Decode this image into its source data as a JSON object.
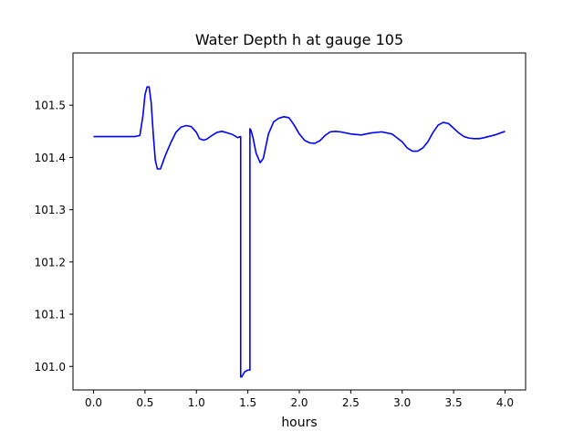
{
  "chart_data": {
    "type": "line",
    "title": "Water Depth h at gauge 105",
    "xlabel": "hours",
    "ylabel": "",
    "xlim": [
      -0.2,
      4.2
    ],
    "ylim": [
      100.955,
      101.6
    ],
    "xticks": [
      0.0,
      0.5,
      1.0,
      1.5,
      2.0,
      2.5,
      3.0,
      3.5,
      4.0
    ],
    "xtick_labels": [
      "0.0",
      "0.5",
      "1.0",
      "1.5",
      "2.0",
      "2.5",
      "3.0",
      "3.5",
      "4.0"
    ],
    "yticks": [
      101.0,
      101.1,
      101.2,
      101.3,
      101.4,
      101.5
    ],
    "ytick_labels": [
      "101.0",
      "101.1",
      "101.2",
      "101.3",
      "101.4",
      "101.5"
    ],
    "grid": false,
    "legend": "none",
    "series": [
      {
        "color": "#0000ff",
        "x": [
          0.0,
          0.1,
          0.2,
          0.3,
          0.4,
          0.45,
          0.48,
          0.5,
          0.52,
          0.54,
          0.56,
          0.58,
          0.6,
          0.62,
          0.65,
          0.7,
          0.75,
          0.8,
          0.85,
          0.9,
          0.95,
          1.0,
          1.03,
          1.07,
          1.1,
          1.15,
          1.2,
          1.25,
          1.3,
          1.35,
          1.4,
          1.43,
          1.43,
          1.44,
          1.47,
          1.5,
          1.52,
          1.52,
          1.53,
          1.55,
          1.58,
          1.62,
          1.65,
          1.7,
          1.75,
          1.8,
          1.85,
          1.9,
          1.95,
          2.0,
          2.05,
          2.1,
          2.15,
          2.2,
          2.25,
          2.3,
          2.35,
          2.4,
          2.5,
          2.6,
          2.7,
          2.8,
          2.9,
          3.0,
          3.05,
          3.1,
          3.15,
          3.2,
          3.25,
          3.3,
          3.35,
          3.4,
          3.45,
          3.5,
          3.55,
          3.6,
          3.65,
          3.7,
          3.75,
          3.8,
          3.9,
          4.0
        ],
        "y": [
          101.44,
          101.44,
          101.44,
          101.44,
          101.44,
          101.442,
          101.48,
          101.52,
          101.535,
          101.535,
          101.505,
          101.445,
          101.395,
          101.378,
          101.378,
          101.405,
          101.428,
          101.448,
          101.458,
          101.461,
          101.459,
          101.448,
          101.436,
          101.433,
          101.435,
          101.442,
          101.448,
          101.45,
          101.447,
          101.444,
          101.438,
          101.44,
          100.98,
          100.98,
          100.99,
          100.993,
          100.993,
          101.455,
          101.452,
          101.438,
          101.408,
          101.39,
          101.398,
          101.445,
          101.468,
          101.475,
          101.478,
          101.476,
          101.462,
          101.445,
          101.433,
          101.428,
          101.427,
          101.432,
          101.442,
          101.449,
          101.45,
          101.449,
          101.445,
          101.443,
          101.447,
          101.449,
          101.445,
          101.43,
          101.418,
          101.412,
          101.412,
          101.418,
          101.43,
          101.448,
          101.462,
          101.467,
          101.465,
          101.456,
          101.447,
          101.44,
          101.437,
          101.436,
          101.436,
          101.438,
          101.443,
          101.45
        ]
      }
    ]
  }
}
